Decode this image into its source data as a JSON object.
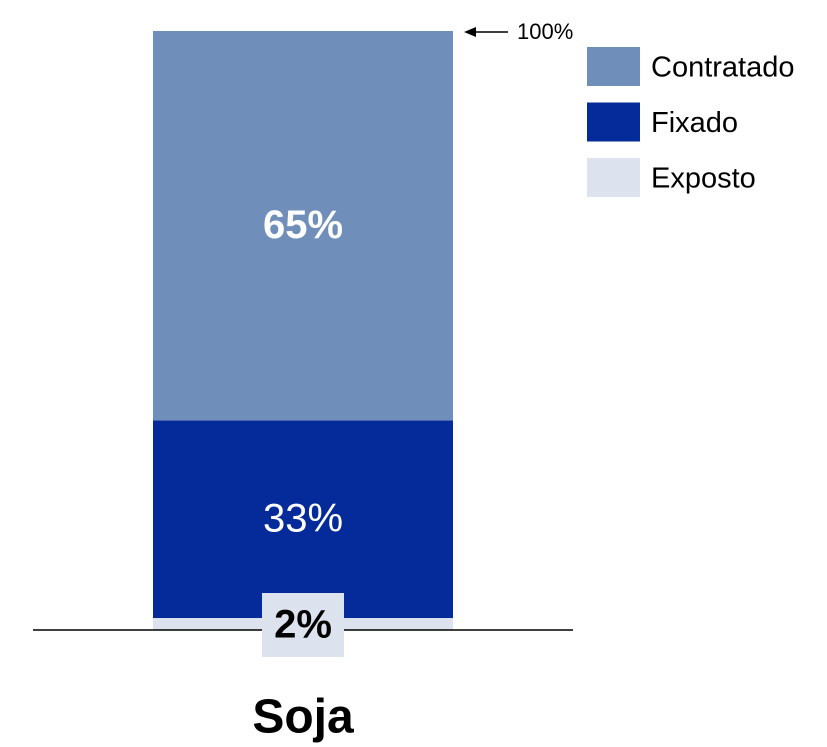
{
  "chart_data": {
    "type": "stacked_bar",
    "categories": [
      "Soja"
    ],
    "series": [
      {
        "name": "Contratado",
        "color": "#6f8fba",
        "values": [
          65
        ],
        "value_labels": [
          "65%"
        ]
      },
      {
        "name": "Fixado",
        "color": "#052a9a",
        "values": [
          33
        ],
        "value_labels": [
          "33%"
        ]
      },
      {
        "name": "Exposto",
        "color": "#dce3ee",
        "values": [
          2
        ],
        "value_labels": [
          "2%"
        ]
      }
    ],
    "ylim": [
      0,
      100
    ],
    "annotation": "100%",
    "legend": "upper right"
  }
}
